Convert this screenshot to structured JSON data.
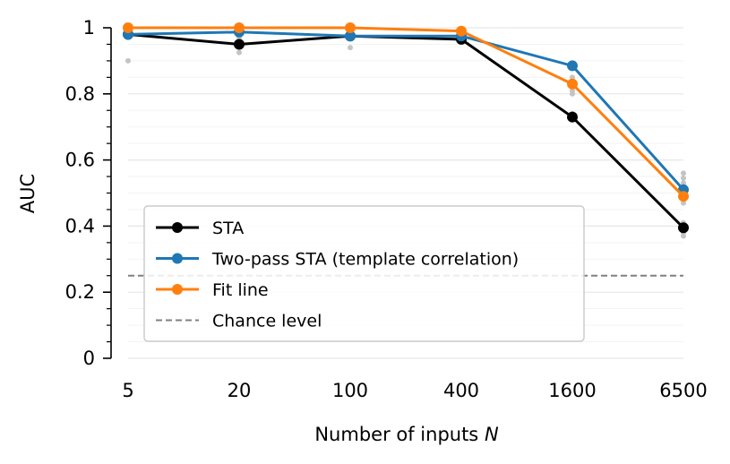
{
  "chart_data": {
    "type": "line",
    "categories": [
      "5",
      "20",
      "100",
      "400",
      "1600",
      "6500"
    ],
    "xlabel_text": "Number of inputs ",
    "xlabel_var": "N",
    "ylabel": "AUC",
    "ylim": [
      0,
      1
    ],
    "yticks": [
      0,
      0.2,
      0.4,
      0.6,
      0.8,
      1
    ],
    "ytick_labels": [
      "0",
      "0.2",
      "0.4",
      "0.6",
      "0.8",
      "1"
    ],
    "series": [
      {
        "name": "STA",
        "color": "#000000",
        "values": [
          0.98,
          0.95,
          0.975,
          0.965,
          0.73,
          0.395
        ]
      },
      {
        "name": "Two-pass STA (template correlation)",
        "color": "#1f77b4",
        "values": [
          0.98,
          0.987,
          0.975,
          0.975,
          0.885,
          0.51
        ]
      },
      {
        "name": "Fit line",
        "color": "#ff7f0e",
        "values": [
          1.0,
          1.0,
          1.0,
          0.99,
          0.83,
          0.49
        ]
      }
    ],
    "chance_level": {
      "name": "Chance level",
      "value": 0.25,
      "color": "#808080"
    },
    "individual_points": [
      {
        "category_index": 0,
        "values": [
          0.9,
          0.98,
          0.99,
          1.0
        ]
      },
      {
        "category_index": 1,
        "values": [
          0.925,
          0.95,
          0.97,
          1.0
        ]
      },
      {
        "category_index": 2,
        "values": [
          0.94,
          0.97,
          0.98,
          1.0
        ]
      },
      {
        "category_index": 3,
        "values": [
          0.96,
          0.97,
          0.98,
          0.99
        ]
      },
      {
        "category_index": 4,
        "values": [
          0.74,
          0.8,
          0.81,
          0.85,
          0.88
        ]
      },
      {
        "category_index": 5,
        "values": [
          0.37,
          0.38,
          0.41,
          0.47,
          0.49,
          0.53,
          0.545,
          0.56
        ]
      }
    ],
    "grid": "horizontal minor",
    "legend_position": "lower-left"
  }
}
